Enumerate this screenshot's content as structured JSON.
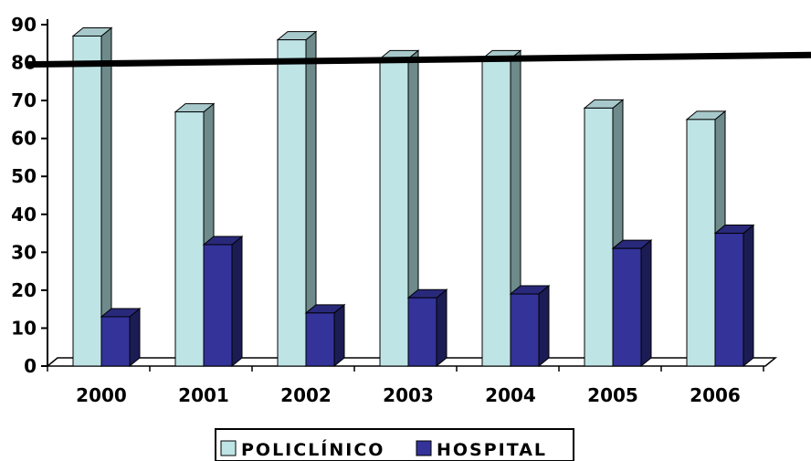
{
  "chart_data": {
    "type": "bar",
    "categories": [
      "2000",
      "2001",
      "2002",
      "2003",
      "2004",
      "2005",
      "2006"
    ],
    "series": [
      {
        "name": "POLICLÍNICO",
        "values": [
          87,
          67,
          86,
          81,
          81,
          68,
          65
        ],
        "color": "#bfe4e6"
      },
      {
        "name": "HOSPITAL",
        "values": [
          13,
          32,
          14,
          18,
          19,
          31,
          35
        ],
        "color": "#33339a"
      }
    ],
    "ylim": [
      0,
      90
    ],
    "yticks": [
      0,
      10,
      20,
      30,
      40,
      50,
      60,
      70,
      80,
      90
    ],
    "reference_line": {
      "y_start": 79.5,
      "y_end": 82
    },
    "legend": {
      "position": "bottom"
    },
    "grid": false,
    "three_d": true
  }
}
